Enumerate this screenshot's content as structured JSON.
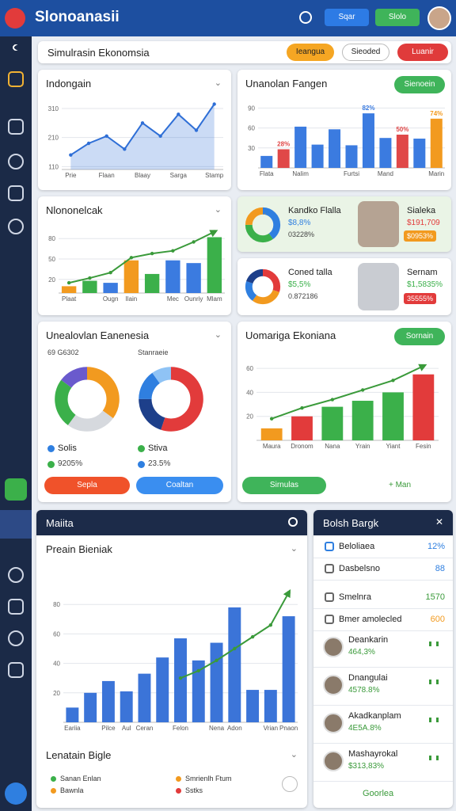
{
  "header": {
    "title": "Slonoanasii",
    "buttons": [
      "Sqar",
      "Slolo"
    ]
  },
  "toolbar": {
    "title": "Simulrasin Ekonomsia",
    "buttons": [
      "Ieangua",
      "Sieoded",
      "Luanir"
    ]
  },
  "line_card": {
    "title": "Indongain",
    "chart": {
      "type": "area",
      "categories": [
        "Prie",
        null,
        "Flaan",
        null,
        "Blaay",
        null,
        "Sarga",
        null,
        "Stamp"
      ],
      "values": [
        150,
        190,
        215,
        170,
        260,
        215,
        290,
        235,
        325
      ],
      "ylim": [
        100,
        340
      ],
      "yticks": [
        110,
        210,
        310
      ],
      "color": "#2f6fd6"
    }
  },
  "bar_card": {
    "title": "Unanolan Fangen",
    "button": "Sienoein",
    "chart": {
      "type": "bar",
      "categories": [
        "Flata",
        null,
        "Nalim",
        null,
        null,
        "Furtsi",
        null,
        "Mand",
        null,
        null,
        "Marin"
      ],
      "values": [
        18,
        28,
        62,
        35,
        58,
        34,
        82,
        45,
        50,
        44,
        74
      ],
      "value_labels": [
        null,
        "28%",
        null,
        null,
        null,
        null,
        "82%",
        null,
        "50%",
        null,
        "74%"
      ],
      "colors": [
        "#3b7be0",
        "#e04848",
        "#3b7be0",
        "#3b7be0",
        "#3b7be0",
        "#3b7be0",
        "#3b7be0",
        "#3b7be0",
        "#e04848",
        "#3b7be0",
        "#f29a1f"
      ],
      "ylim": [
        0,
        100
      ],
      "yticks": [
        30,
        60,
        90
      ]
    }
  },
  "combo_card": {
    "title": "Nlononelcak",
    "chart": {
      "type": "combo",
      "categories": [
        "Plaat",
        null,
        "Ougn",
        "Ilain",
        null,
        "Mec",
        "Ounriy",
        "Mlam"
      ],
      "series": [
        {
          "type": "bar",
          "colors": [
            "#f29a1f",
            "#3bb04a",
            "#3b7be0",
            "#f29a1f",
            "#3bb04a",
            "#3b7be0",
            "#3b7be0",
            "#3bb04a"
          ],
          "values": [
            10,
            18,
            15,
            48,
            28,
            48,
            44,
            82
          ]
        },
        {
          "type": "line",
          "color": "#3a9a3a",
          "values": [
            15,
            22,
            30,
            52,
            58,
            62,
            75,
            90
          ]
        }
      ],
      "ylim": [
        0,
        100
      ],
      "yticks": [
        20,
        50,
        80
      ]
    }
  },
  "profile_cards": [
    {
      "title": "Kandko Flalla",
      "stats": [
        "$8,8%",
        "03228%"
      ],
      "donut": {
        "values": [
          40,
          35,
          25
        ],
        "colors": [
          "#2f7fe0",
          "#3bb04a",
          "#f29a1f"
        ]
      },
      "name": "Sialeka",
      "amount": "$191,709",
      "badge": "$0953%"
    },
    {
      "title": "Coned talla",
      "stats": [
        "$5,5%",
        "0.872186"
      ],
      "donut": {
        "values": [
          30,
          30,
          20,
          20
        ],
        "colors": [
          "#e23b3b",
          "#f29a1f",
          "#2f7fe0",
          "#1d3f8a"
        ]
      },
      "name": "Sernam",
      "amount": "$1,5835%",
      "badge": "35555%"
    }
  ],
  "donut_card": {
    "title": "Unealovlan Eanenesia",
    "subtitles": [
      "69 G6302",
      "Stanraeie"
    ],
    "donuts": [
      {
        "values": [
          35,
          25,
          25,
          15
        ],
        "colors": [
          "#f29a1f",
          "#d6d9de",
          "#3bb04a",
          "#6a5acd"
        ],
        "label": "Solis",
        "value_text": "9205%",
        "color": "#2f7fe0"
      },
      {
        "values": [
          55,
          20,
          15,
          10
        ],
        "colors": [
          "#e23b3b",
          "#1d3f8a",
          "#2f7fe0",
          "#8fc3f5"
        ],
        "label": "Stiva",
        "value_text": "23.5%",
        "color": "#3bb04a"
      }
    ],
    "buttons": [
      "Sepla",
      "Coaltan"
    ]
  },
  "growth_card": {
    "title": "Uomariga Ekoniana",
    "button": "Sornain",
    "chart": {
      "type": "combo",
      "categories": [
        "Maura",
        "Dronom",
        "Nana",
        "Yrain",
        "Yiant",
        "Fesin"
      ],
      "series": [
        {
          "type": "bar",
          "colors": [
            "#f29a1f",
            "#e23b3b",
            "#3bb04a",
            "#3bb04a",
            "#3bb04a",
            "#e23b3b"
          ],
          "values": [
            10,
            20,
            28,
            33,
            40,
            55
          ]
        },
        {
          "type": "line",
          "color": "#3a9a3a",
          "values": [
            18,
            27,
            34,
            42,
            50,
            62
          ]
        }
      ],
      "ylim": [
        0,
        70
      ],
      "yticks": [
        20,
        40,
        60
      ]
    },
    "buttons": [
      "Sirnulas",
      "+ Man"
    ]
  },
  "main_panel": {
    "title": "Maiita",
    "chart_title": "Preain Bieniak",
    "chart": {
      "type": "combo",
      "categories": [
        "Eariia",
        null,
        "Pilce",
        "Aul",
        "Ceran",
        null,
        "Felon",
        null,
        "Nena",
        "Adon",
        null,
        "Vrian",
        "Pnaon"
      ],
      "series": [
        {
          "type": "bar",
          "color": "#3b74d8",
          "values": [
            10,
            20,
            28,
            21,
            33,
            44,
            57,
            42,
            54,
            78,
            22,
            22,
            72
          ]
        },
        {
          "type": "line",
          "color": "#3a9a3a",
          "values": [
            null,
            null,
            null,
            null,
            null,
            null,
            30,
            35,
            42,
            50,
            58,
            66,
            88
          ]
        }
      ],
      "ylim": [
        0,
        100
      ],
      "yticks": [
        20,
        40,
        60,
        80
      ]
    },
    "legend_title": "Lenatain Bigle",
    "legend": [
      {
        "name": "Sanan Enlan",
        "color": "#3bb04a"
      },
      {
        "name": "Smrienlh Ftum",
        "color": "#f29a1f"
      },
      {
        "name": "Bawnla",
        "color": "#f29a1f"
      },
      {
        "name": "Sstks",
        "color": "#e23b3b"
      }
    ]
  },
  "side_panel": {
    "title": "Bolsh Bargk",
    "items": [
      {
        "label": "Beloliaea",
        "value": "12%"
      },
      {
        "label": "Dasbelsno",
        "value": "88"
      },
      {
        "label": "Smelnra",
        "value": "1570"
      },
      {
        "label": "Bmer amolecled",
        "value": "600"
      }
    ],
    "people": [
      {
        "name": "Deankarin",
        "value": "464,3%"
      },
      {
        "name": "Dnangulai",
        "value": "4578.8%"
      },
      {
        "name": "Akadkanplam",
        "value": "4E5A.8%"
      },
      {
        "name": "Mashayrokal",
        "value": "$313,83%"
      }
    ],
    "footer": "Goorlea"
  }
}
